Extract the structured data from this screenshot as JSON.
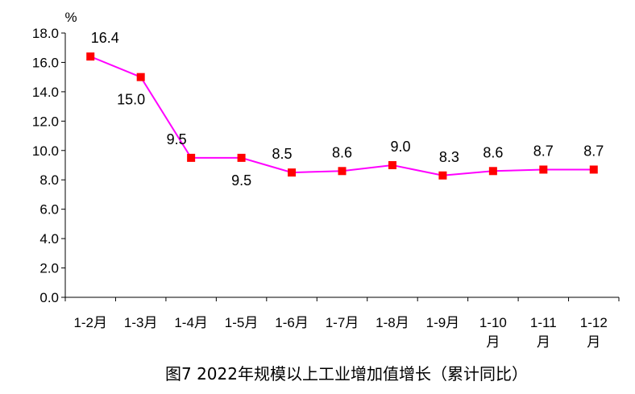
{
  "caption": "图7 2022年规模以上工业增加值增长（累计同比）",
  "chart_data": {
    "type": "line",
    "y_unit": "%",
    "ylim": [
      0,
      18
    ],
    "y_ticks": [
      "0.0",
      "2.0",
      "4.0",
      "6.0",
      "8.0",
      "10.0",
      "12.0",
      "14.0",
      "16.0",
      "18.0"
    ],
    "categories": [
      [
        "1-2月"
      ],
      [
        "1-3月"
      ],
      [
        "1-4月"
      ],
      [
        "1-5月"
      ],
      [
        "1-6月"
      ],
      [
        "1-7月"
      ],
      [
        "1-8月"
      ],
      [
        "1-9月"
      ],
      [
        "1-10",
        "月"
      ],
      [
        "1-11",
        "月"
      ],
      [
        "1-12",
        "月"
      ]
    ],
    "series": [
      {
        "values": [
          16.4,
          15.0,
          9.5,
          9.5,
          8.5,
          8.6,
          9.0,
          8.3,
          8.6,
          8.7,
          8.7
        ],
        "labels": [
          "16.4",
          "15.0",
          "9.5",
          "9.5",
          "8.5",
          "8.6",
          "9.0",
          "8.3",
          "8.6",
          "8.7",
          "8.7"
        ],
        "line_color": "#ff00ff",
        "marker_color": "#ff0000"
      }
    ],
    "grid": false,
    "legend": "none"
  }
}
